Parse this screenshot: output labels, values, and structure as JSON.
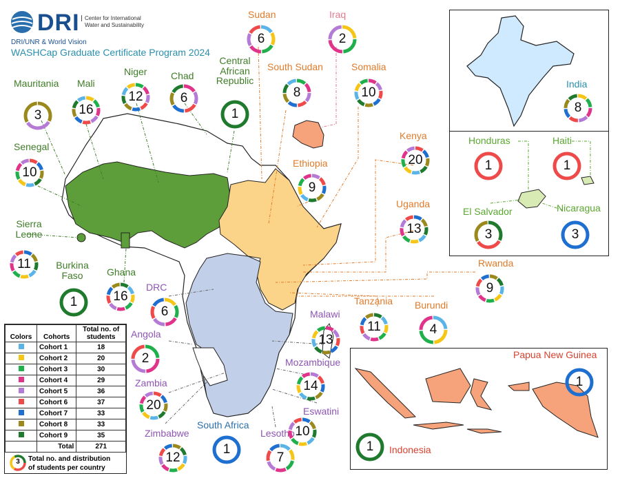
{
  "header": {
    "logo_text": "DRI",
    "org_line1": "Center for International",
    "org_line2": "Water and Sustainability",
    "partners": "DRI/UNR & World Vision",
    "title": "WASHCap Graduate Certificate Program 2024"
  },
  "colors": {
    "cohort1": "#5ab4e8",
    "cohort2": "#f5c518",
    "cohort3": "#1fb04b",
    "cohort4": "#e0338a",
    "cohort5": "#b57ad6",
    "cohort6": "#ef4a4a",
    "cohort7": "#1e6fd0",
    "cohort8": "#9a8a1e",
    "cohort9": "#1f7a2e",
    "west_region": "#5d9e3a",
    "east_region": "#fbd48a",
    "south_region": "#c2cfe8",
    "asia_region": "#f6a27a",
    "india_fill": "#cfe9ff",
    "central_am": "#d8ebb5",
    "label_green": "#3f7d28",
    "label_orange": "#e07b2a",
    "label_purple": "#8e55b5",
    "label_teal": "#2a8fae",
    "label_pink": "#e57a8f",
    "label_red": "#d6422f"
  },
  "countries": [
    {
      "name": "Mauritania",
      "count": "3"
    },
    {
      "name": "Mali",
      "count": "16"
    },
    {
      "name": "Niger",
      "count": "12"
    },
    {
      "name": "Chad",
      "count": "6"
    },
    {
      "name": "Central African Republic",
      "count": "1"
    },
    {
      "name": "Senegal",
      "count": "10"
    },
    {
      "name": "Sierra Leone",
      "count": "11"
    },
    {
      "name": "Burkina Faso",
      "count": "1"
    },
    {
      "name": "Ghana",
      "count": "16"
    },
    {
      "name": "Sudan",
      "count": "6"
    },
    {
      "name": "Iraq",
      "count": "2"
    },
    {
      "name": "South Sudan",
      "count": "8"
    },
    {
      "name": "Somalia",
      "count": "10"
    },
    {
      "name": "Ethiopia",
      "count": "9"
    },
    {
      "name": "Kenya",
      "count": "20"
    },
    {
      "name": "Uganda",
      "count": "13"
    },
    {
      "name": "Rwanda",
      "count": "9"
    },
    {
      "name": "Tanzania",
      "count": "11"
    },
    {
      "name": "Burundi",
      "count": "4"
    },
    {
      "name": "DRC",
      "count": "6"
    },
    {
      "name": "Angola",
      "count": "2"
    },
    {
      "name": "Malawi",
      "count": "13"
    },
    {
      "name": "Mozambique",
      "count": "14"
    },
    {
      "name": "Zambia",
      "count": "20"
    },
    {
      "name": "Eswatini",
      "count": "10"
    },
    {
      "name": "Zimbabwe",
      "count": "12"
    },
    {
      "name": "South Africa",
      "count": "1"
    },
    {
      "name": "Lesotho",
      "count": "7"
    },
    {
      "name": "India",
      "count": "8"
    },
    {
      "name": "Honduras",
      "count": "1"
    },
    {
      "name": "Haiti",
      "count": "1"
    },
    {
      "name": "El Salvador",
      "count": "3"
    },
    {
      "name": "Nicaragua",
      "count": "3"
    },
    {
      "name": "Papua New Guinea",
      "count": "1"
    },
    {
      "name": "Indonesia",
      "count": "1"
    }
  ],
  "legend": {
    "col_colors": "Colors",
    "col_cohorts": "Cohorts",
    "col_total_line1": "Total no. of",
    "col_total_line2": "students",
    "rows": [
      {
        "cohort": "Cohort 1",
        "total": "18"
      },
      {
        "cohort": "Cohort 2",
        "total": "20"
      },
      {
        "cohort": "Cohort 3",
        "total": "30"
      },
      {
        "cohort": "Cohort 4",
        "total": "29"
      },
      {
        "cohort": "Cohort 5",
        "total": "36"
      },
      {
        "cohort": "Cohort 6",
        "total": "37"
      },
      {
        "cohort": "Cohort 7",
        "total": "33"
      },
      {
        "cohort": "Cohort 8",
        "total": "33"
      },
      {
        "cohort": "Cohort 9",
        "total": "35"
      }
    ],
    "total_label": "Total",
    "total_value": "271",
    "sample_count": "3",
    "note_line1": "Total no. and distribution",
    "note_line2": "of students per country"
  }
}
